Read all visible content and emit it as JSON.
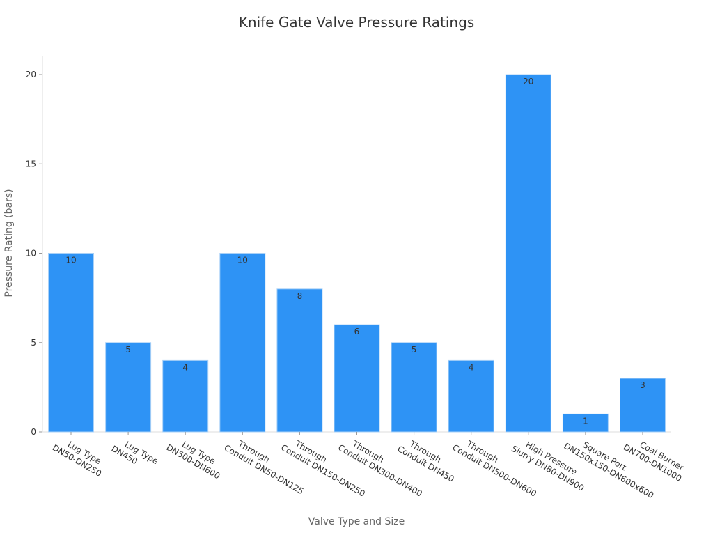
{
  "chart_data": {
    "type": "bar",
    "title": "Knife Gate Valve Pressure Ratings",
    "xlabel": "Valve Type and Size",
    "ylabel": "Pressure Rating (bars)",
    "categories": [
      "Lug Type\nDN50-DN250",
      "Lug Type\nDN450",
      "Lug Type\nDN500-DN600",
      "Through\nConduit DN50-DN125",
      "Through\nConduit DN150-DN250",
      "Through\nConduit DN300-DN400",
      "Through\nConduit DN450",
      "Through\nConduit DN500-DN600",
      "High Pressure\nSlurry DN80-DN900",
      "Square Port\nDN150x150-DN600x600",
      "Coal Burner\nDN700-DN1000"
    ],
    "values": [
      10,
      5,
      4,
      10,
      8,
      6,
      5,
      4,
      20,
      1,
      3
    ],
    "ylim": [
      0,
      21
    ],
    "yticks": [
      0,
      5,
      10,
      15,
      20
    ],
    "grid": false,
    "legend": null,
    "bar_color": "#2e93f5",
    "data_labels": true
  }
}
